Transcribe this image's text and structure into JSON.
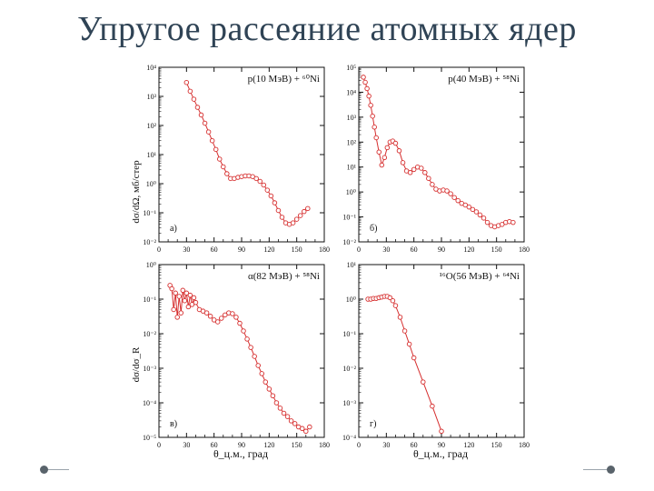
{
  "slide": {
    "title": "Упругое рассеяние атомных ядер"
  },
  "colors": {
    "series": "#d62f2f",
    "axis": "#111111",
    "title": "#2f4355"
  },
  "axes_labels": {
    "ylabel_top": "dσ/dΩ, мб/стер",
    "ylabel_bottom": "dσ/dσ_R",
    "xlabel": "θ_ц.м., град"
  },
  "chart_data": [
    {
      "type": "line",
      "panel": "а)",
      "reaction": "p(10 МэВ) + ⁶⁰Ni",
      "ylim": [
        0.01,
        10000
      ],
      "ytick_exps": [
        -2,
        -1,
        0,
        1,
        2,
        3,
        4
      ],
      "xlim": [
        0,
        180
      ],
      "xticks": [
        0,
        30,
        60,
        90,
        120,
        150,
        180
      ],
      "x": [
        30,
        34,
        38,
        42,
        46,
        50,
        54,
        58,
        62,
        66,
        70,
        74,
        78,
        82,
        86,
        90,
        94,
        98,
        102,
        106,
        110,
        114,
        118,
        122,
        126,
        130,
        134,
        138,
        142,
        146,
        150,
        154,
        158,
        162
      ],
      "y": [
        3000,
        1500,
        800,
        420,
        230,
        120,
        60,
        30,
        15,
        7,
        3.8,
        2.2,
        1.5,
        1.5,
        1.65,
        1.75,
        1.85,
        1.85,
        1.75,
        1.5,
        1.2,
        0.9,
        0.6,
        0.38,
        0.22,
        0.12,
        0.07,
        0.045,
        0.04,
        0.045,
        0.06,
        0.08,
        0.11,
        0.14
      ]
    },
    {
      "type": "line",
      "panel": "б)",
      "reaction": "p(40 МэВ) + ⁵⁸Ni",
      "ylim": [
        0.01,
        100000
      ],
      "ytick_exps": [
        -2,
        -1,
        0,
        1,
        2,
        3,
        4,
        5
      ],
      "xlim": [
        0,
        180
      ],
      "xticks": [
        0,
        30,
        60,
        90,
        120,
        150,
        180
      ],
      "x": [
        5,
        7,
        9,
        11,
        13,
        15,
        17,
        19,
        22,
        25,
        28,
        31,
        34,
        37,
        40,
        44,
        48,
        52,
        56,
        60,
        64,
        68,
        72,
        76,
        80,
        84,
        88,
        92,
        96,
        100,
        104,
        108,
        112,
        116,
        120,
        124,
        128,
        132,
        136,
        140,
        144,
        148,
        152,
        156,
        160,
        164,
        168
      ],
      "y": [
        40000,
        25000,
        14000,
        7000,
        3000,
        1100,
        400,
        150,
        40,
        12,
        24,
        60,
        100,
        110,
        90,
        45,
        15,
        7,
        6,
        8,
        10,
        9,
        6,
        3.5,
        2,
        1.3,
        1.1,
        1.2,
        1.1,
        0.85,
        0.6,
        0.45,
        0.35,
        0.3,
        0.25,
        0.2,
        0.16,
        0.12,
        0.09,
        0.06,
        0.045,
        0.04,
        0.045,
        0.05,
        0.06,
        0.065,
        0.06
      ]
    },
    {
      "type": "line",
      "panel": "в)",
      "reaction": "α(82 МэВ) + ⁵⁸Ni",
      "ylim": [
        1e-05,
        1
      ],
      "ytick_exps": [
        -5,
        -4,
        -3,
        -2,
        -1,
        0
      ],
      "xlim": [
        0,
        180
      ],
      "xticks": [
        0,
        30,
        60,
        90,
        120,
        150,
        180
      ],
      "x": [
        12,
        14,
        16,
        18,
        20,
        22,
        24,
        26,
        28,
        30,
        32,
        34,
        36,
        38,
        40,
        44,
        48,
        52,
        56,
        60,
        64,
        68,
        72,
        76,
        80,
        84,
        88,
        92,
        96,
        100,
        104,
        108,
        112,
        116,
        120,
        124,
        128,
        132,
        136,
        140,
        144,
        148,
        152,
        156,
        160,
        164
      ],
      "y": [
        0.25,
        0.2,
        0.05,
        0.15,
        0.03,
        0.12,
        0.04,
        0.18,
        0.09,
        0.15,
        0.06,
        0.13,
        0.07,
        0.11,
        0.08,
        0.05,
        0.045,
        0.04,
        0.032,
        0.025,
        0.022,
        0.028,
        0.035,
        0.04,
        0.038,
        0.03,
        0.02,
        0.012,
        0.007,
        0.004,
        0.0022,
        0.0012,
        0.0007,
        0.0004,
        0.00025,
        0.00016,
        0.0001,
        7e-05,
        5e-05,
        4e-05,
        3e-05,
        2.5e-05,
        2e-05,
        1.8e-05,
        1.5e-05,
        2e-05
      ]
    },
    {
      "type": "line",
      "panel": "г)",
      "reaction": "¹⁶O(56 МэВ) + ⁶⁴Ni",
      "ylim": [
        0.0001,
        10
      ],
      "ytick_exps": [
        -4,
        -3,
        -2,
        -1,
        0,
        1
      ],
      "xlim": [
        0,
        180
      ],
      "xticks": [
        0,
        30,
        60,
        90,
        120,
        150,
        180
      ],
      "x": [
        10,
        13,
        16,
        19,
        22,
        25,
        28,
        31,
        34,
        37,
        40,
        45,
        50,
        55,
        60,
        70,
        80,
        90
      ],
      "y": [
        1.0,
        1.0,
        1.05,
        1.05,
        1.1,
        1.15,
        1.2,
        1.2,
        1.1,
        0.9,
        0.65,
        0.3,
        0.12,
        0.05,
        0.02,
        0.004,
        0.0008,
        0.00015
      ]
    }
  ]
}
